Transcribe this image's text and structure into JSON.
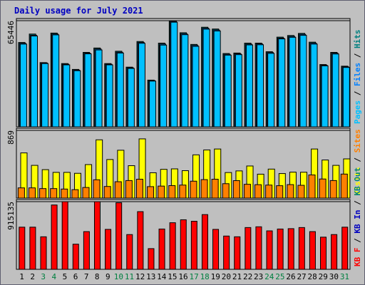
{
  "colors": {
    "frame_outer": "#c0c0c0",
    "frame_border": "#5f5f6f",
    "plot_bg": "#bfbfbf",
    "title": "#0000c0",
    "page": "#00c0ff",
    "file": "#0080ff",
    "hit": "#008080",
    "visit": "#ffff00",
    "site": "#ff8000",
    "kbin": "#ff0000",
    "kbout": "#008080",
    "weekend": "#008040",
    "weekday": "#000000"
  },
  "chart_data": {
    "type": "bar",
    "title": "Daily usage for July 2021",
    "days": [
      "1",
      "2",
      "3",
      "4",
      "5",
      "6",
      "7",
      "8",
      "9",
      "10",
      "11",
      "12",
      "13",
      "14",
      "15",
      "16",
      "17",
      "18",
      "19",
      "20",
      "21",
      "22",
      "23",
      "24",
      "25",
      "26",
      "27",
      "28",
      "29",
      "30",
      "31"
    ],
    "weekend_days": [
      "3",
      "4",
      "10",
      "11",
      "17",
      "18",
      "24",
      "25",
      "31"
    ],
    "panels": [
      {
        "id": "hits",
        "ymax_label": "65446",
        "ymax": 65446,
        "series": [
          {
            "name": "Hits",
            "values": [
              52000,
              57200,
              39600,
              57800,
              39000,
              35400,
              45900,
              48600,
              39000,
              46600,
              36800,
              52600,
              28800,
              51600,
              65446,
              58000,
              50800,
              61400,
              60300,
              45200,
              45500,
              51600,
              51600,
              46300,
              55300,
              56300,
              57600,
              52200,
              38400,
              45900,
              37400
            ]
          },
          {
            "name": "Files",
            "values": [
              51500,
              56500,
              39400,
              57200,
              38600,
              35000,
              45400,
              48000,
              38600,
              46000,
              36400,
              52000,
              28500,
              51000,
              65000,
              57400,
              50200,
              60800,
              59700,
              44700,
              45000,
              51000,
              51100,
              45800,
              54700,
              55700,
              57000,
              51600,
              38000,
              45400,
              37000
            ]
          },
          {
            "name": "Pages",
            "values": [
              51000,
              56000,
              39000,
              56700,
              38200,
              34600,
              45000,
              47400,
              38200,
              45500,
              36000,
              51500,
              28200,
              50400,
              64500,
              56800,
              49600,
              60200,
              59100,
              44200,
              44500,
              50500,
              50600,
              45300,
              54200,
              55200,
              56400,
              51000,
              37600,
              44900,
              36600
            ]
          }
        ]
      },
      {
        "id": "visits",
        "ymax_label": "869",
        "ymax": 869,
        "series": [
          {
            "name": "Visits",
            "values": [
              580,
              420,
              365,
              330,
              330,
              318,
              430,
              748,
              495,
              614,
              416,
              760,
              325,
              369,
              375,
              352,
              555,
              618,
              630,
              328,
              349,
              412,
              307,
              372,
              315,
              333,
              332,
              630,
              489,
              420,
              503
            ]
          },
          {
            "name": "Sites",
            "values": [
              131,
              131,
              122,
              122,
              116,
              108,
              136,
              235,
              149,
              210,
              225,
              242,
              147,
              154,
              160,
              167,
              217,
              237,
              242,
              185,
              224,
              177,
              172,
              167,
              159,
              173,
              164,
              297,
              245,
              225,
              308
            ]
          }
        ]
      },
      {
        "id": "kbytes",
        "ymax_label": "915135",
        "ymax": 915135,
        "series": [
          {
            "name": "KB In",
            "values": [
              0,
              0,
              0,
              0,
              0,
              0,
              0,
              0,
              0,
              0,
              0,
              0,
              0,
              0,
              0,
              0,
              0,
              0,
              0,
              0,
              0,
              0,
              0,
              0,
              0,
              0,
              0,
              0,
              0,
              0,
              0
            ]
          },
          {
            "name": "KB Out",
            "values": [
              0,
              0,
              0,
              0,
              0,
              0,
              0,
              0,
              0,
              0,
              0,
              0,
              0,
              0,
              0,
              0,
              0,
              0,
              0,
              0,
              0,
              0,
              0,
              0,
              0,
              0,
              0,
              0,
              0,
              0,
              0
            ]
          },
          {
            "name": "KB F",
            "values": [
              570000,
              570000,
              440000,
              870000,
              915135,
              340000,
              510000,
              915135,
              540000,
              900000,
              470000,
              780000,
              280000,
              545000,
              630000,
              670000,
              650000,
              740000,
              540000,
              450000,
              440000,
              565000,
              575000,
              520000,
              545000,
              550000,
              565000,
              510000,
              435000,
              470000,
              570000
            ]
          }
        ]
      }
    ],
    "right_legends": [
      [
        {
          "text": "Pages",
          "color": "#00c0ff"
        },
        {
          "text": " / ",
          "color": "#000000"
        },
        {
          "text": "Files",
          "color": "#0080ff"
        },
        {
          "text": " / ",
          "color": "#000000"
        },
        {
          "text": "Hits",
          "color": "#008080"
        }
      ],
      [
        {
          "text": "Visits",
          "color": "#ffff00"
        },
        {
          "text": " / ",
          "color": "#000000"
        },
        {
          "text": "Sites",
          "color": "#ff8000"
        }
      ],
      [
        {
          "text": "KB F",
          "color": "#ff0000"
        },
        {
          "text": " / ",
          "color": "#000000"
        },
        {
          "text": "KB In",
          "color": "#0000c0"
        },
        {
          "text": " / ",
          "color": "#000000"
        },
        {
          "text": "KB Out",
          "color": "#008080"
        }
      ]
    ]
  }
}
